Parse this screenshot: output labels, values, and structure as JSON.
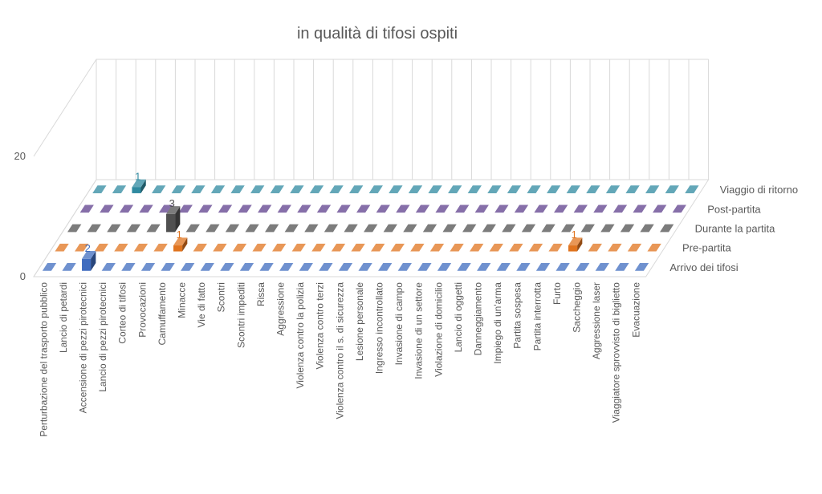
{
  "chart_data": {
    "type": "bar3d",
    "title": "in qualità di tifosi ospiti",
    "categories": [
      "Perturbazione del trasporto pubblico",
      "Lancio di petardi",
      "Accensione di pezzi pirotecnici",
      "Lancio di pezzi pirotecnici",
      "Corteo di tifosi",
      "Provocazioni",
      "Camuffamento",
      "Minacce",
      "Vie di fatto",
      "Scontri",
      "Scontri impediti",
      "Rissa",
      "Aggressione",
      "Violenza contro la polizia",
      "Violenza contro terzi",
      "Violenza contro il s. di sicurezza",
      "Lesione personale",
      "Ingresso incontrollato",
      "Invasione di campo",
      "Invasione di un settore",
      "Violazione di domicilio",
      "Lancio di oggetti",
      "Danneggiamento",
      "Impiego di un'arma",
      "Partita sospesa",
      "Partita interrotta",
      "Furto",
      "Saccheggio",
      "Aggressione laser",
      "Viaggiatore sprovvisto di biglietto",
      "Evacuazione"
    ],
    "series": [
      {
        "name": "Arrivo dei tifosi",
        "color": "#3f6cbf",
        "values": [
          0,
          0,
          2,
          0,
          0,
          0,
          0,
          0,
          0,
          0,
          0,
          0,
          0,
          0,
          0,
          0,
          0,
          0,
          0,
          0,
          0,
          0,
          0,
          0,
          0,
          0,
          0,
          0,
          0,
          0,
          0
        ]
      },
      {
        "name": "Pre-partita",
        "color": "#e0741f",
        "values": [
          0,
          0,
          0,
          0,
          0,
          0,
          1,
          0,
          0,
          0,
          0,
          0,
          0,
          0,
          0,
          0,
          0,
          0,
          0,
          0,
          0,
          0,
          0,
          0,
          0,
          0,
          1,
          0,
          0,
          0,
          0
        ]
      },
      {
        "name": "Durante la partita",
        "color": "#505050",
        "values": [
          0,
          0,
          0,
          0,
          0,
          3,
          0,
          0,
          0,
          0,
          0,
          0,
          0,
          0,
          0,
          0,
          0,
          0,
          0,
          0,
          0,
          0,
          0,
          0,
          0,
          0,
          0,
          0,
          0,
          0,
          0
        ]
      },
      {
        "name": "Post-partita",
        "color": "#5e3f8c",
        "values": [
          0,
          0,
          0,
          0,
          0,
          0,
          0,
          0,
          0,
          0,
          0,
          0,
          0,
          0,
          0,
          0,
          0,
          0,
          0,
          0,
          0,
          0,
          0,
          0,
          0,
          0,
          0,
          0,
          0,
          0,
          0
        ]
      },
      {
        "name": "Viaggio di ritorno",
        "color": "#2f8aa0",
        "values": [
          0,
          0,
          1,
          0,
          0,
          0,
          0,
          0,
          0,
          0,
          0,
          0,
          0,
          0,
          0,
          0,
          0,
          0,
          0,
          0,
          0,
          0,
          0,
          0,
          0,
          0,
          0,
          0,
          0,
          0,
          0
        ]
      }
    ],
    "ylim": [
      0,
      20
    ],
    "yticks": [
      0,
      20
    ],
    "grid": true
  }
}
